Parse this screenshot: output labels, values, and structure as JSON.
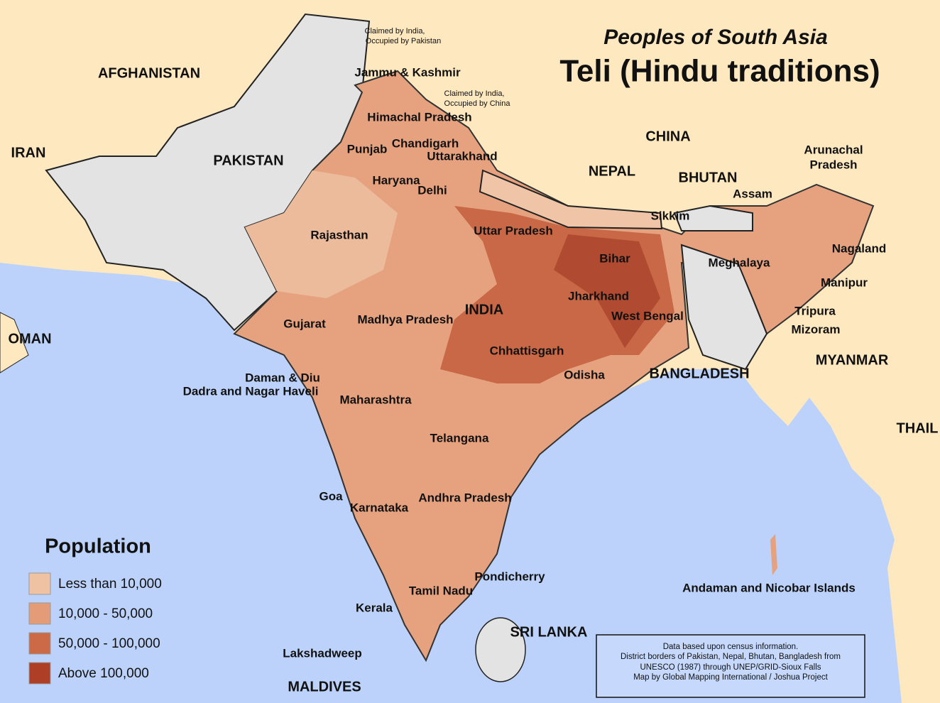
{
  "header": {
    "subtitle": "Peoples of South Asia",
    "title": "Teli (Hindu traditions)"
  },
  "legend": {
    "title": "Population",
    "items": [
      {
        "label": "Less than 10,000",
        "color": "#f0c2a4"
      },
      {
        "label": "10,000 - 50,000",
        "color": "#e49c78"
      },
      {
        "label": "50,000 - 100,000",
        "color": "#cc6a48"
      },
      {
        "label": "Above 100,000",
        "color": "#ae3e26"
      }
    ]
  },
  "countries": [
    "AFGHANISTAN",
    "IRAN",
    "PAKISTAN",
    "CHINA",
    "NEPAL",
    "BHUTAN",
    "INDIA",
    "OMAN",
    "BANGLADESH",
    "MYANMAR",
    "THAIL",
    "SRI LANKA",
    "MALDIVES"
  ],
  "states": [
    "Jammu & Kashmir",
    "Himachal Pradesh",
    "Punjab",
    "Chandigarh",
    "Uttarakhand",
    "Haryana",
    "Delhi",
    "Rajasthan",
    "Uttar Pradesh",
    "Bihar",
    "Sikkim",
    "Arunachal",
    "Pradesh",
    "Assam",
    "Nagaland",
    "Meghalaya",
    "Manipur",
    "Jharkhand",
    "West Bengal",
    "Tripura",
    "Mizoram",
    "Gujarat",
    "Madhya Pradesh",
    "Chhattisgarh",
    "Odisha",
    "Daman & Diu",
    "Dadra and Nagar Haveli",
    "Maharashtra",
    "Telangana",
    "Goa",
    "Karnataka",
    "Andhra Pradesh",
    "Pondicherry",
    "Tamil Nadu",
    "Kerala",
    "Lakshadweep",
    "Andaman and Nicobar Islands"
  ],
  "notes": [
    "Claimed by India,",
    "Occupied by Pakistan",
    "Claimed by India,",
    "Occupied by China"
  ],
  "source": [
    "Data based upon census information.",
    "District borders of Pakistan, Nepal, Bhutan, Bangladesh from",
    "UNESCO (1987) through UNEP/GRID-Sioux Falls",
    "Map by Global Mapping International / Joshua Project"
  ]
}
